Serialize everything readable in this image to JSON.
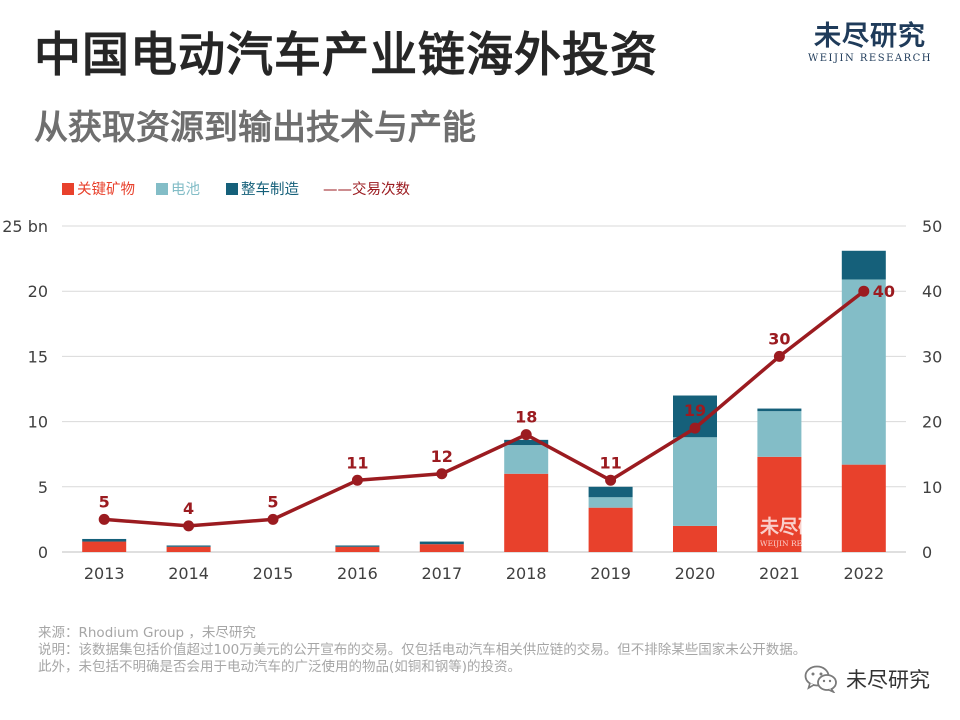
{
  "header": {
    "title": "中国电动汽车产业链海外投资",
    "subtitle": "从获取资源到输出技术与产能"
  },
  "brand": {
    "name": "未尽研究",
    "sub": "WEIJIN RESEARCH"
  },
  "colors": {
    "minerals": "#e8412c",
    "battery": "#83bdc7",
    "vehicle": "#15607a",
    "deals": "#9b1b20",
    "grid": "#d9d9d9"
  },
  "chart_data": {
    "type": "bar",
    "stacked": true,
    "categories": [
      "2013",
      "2014",
      "2015",
      "2016",
      "2017",
      "2018",
      "2019",
      "2020",
      "2021",
      "2022"
    ],
    "series": [
      {
        "name": "关键矿物",
        "values": [
          0.8,
          0.4,
          0.0,
          0.4,
          0.6,
          6.0,
          3.4,
          2.0,
          7.3,
          6.7
        ]
      },
      {
        "name": "电池",
        "values": [
          0.0,
          0.0,
          0.0,
          0.0,
          0.0,
          2.2,
          0.8,
          6.8,
          3.5,
          14.2
        ]
      },
      {
        "name": "整车制造",
        "values": [
          0.2,
          0.1,
          0.0,
          0.1,
          0.2,
          0.4,
          0.8,
          3.2,
          0.2,
          2.2
        ]
      }
    ],
    "line_series": {
      "name": "交易次数",
      "values": [
        5,
        4,
        5,
        11,
        12,
        18,
        11,
        19,
        30,
        40
      ]
    },
    "legend": [
      "关键矿物",
      "电池",
      "整车制造",
      "——交易次数"
    ],
    "y_left": {
      "ticks": [
        "0",
        "5",
        "10",
        "15",
        "20",
        "25 bn"
      ],
      "range": [
        0,
        25
      ]
    },
    "y_right": {
      "ticks": [
        "0",
        "10",
        "20",
        "30",
        "40",
        "50"
      ],
      "range": [
        0,
        50
      ]
    },
    "grid": true
  },
  "watermark": {
    "name": "未尽研究",
    "sub": "WEIJIN RESEARCH"
  },
  "notes": {
    "source": "来源：Rhodium Group ，未尽研究",
    "line1": "说明：该数据集包括价值超过100万美元的公开宣布的交易。仅包括电动汽车相关供应链的交易。但不排除某些国家未公开数据。",
    "line2": "此外，未包括不明确是否会用于电动汽车的广泛使用的物品(如铜和钢等)的投资。"
  },
  "wechat": {
    "name": "未尽研究",
    "icon": "wechat-icon"
  }
}
